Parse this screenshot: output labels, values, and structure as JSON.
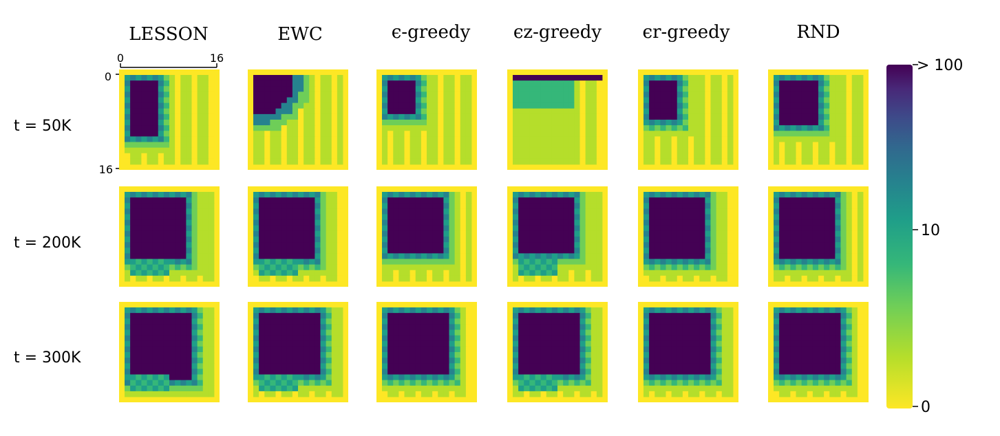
{
  "chart_data": {
    "type": "heatmap",
    "columns": [
      "LESSON",
      "EWC",
      "ϵ-greedy",
      "ϵz-greedy",
      "ϵr-greedy",
      "RND"
    ],
    "rows": [
      "t = 50K",
      "t = 200K",
      "t = 300K"
    ],
    "grid_size": 16,
    "axis_ticks": [
      "0",
      "16"
    ],
    "colorbar": {
      "ticks": [
        "> 100",
        "10",
        "0"
      ],
      "scale": "log",
      "colors": [
        "#fde725",
        "#b5de2b",
        "#6ece58",
        "#35b779",
        "#1f9e89",
        "#26828e",
        "#31688e",
        "#3e4989",
        "#482878",
        "#440154"
      ]
    },
    "grid_on": false,
    "legend": "colorbar-right",
    "panels": [
      [
        {
          "dark_box": [
            1,
            5,
            1,
            10
          ],
          "note": "wall near bottom"
        },
        {
          "dark_quarter_circle": 7
        },
        {
          "dark_box": [
            1,
            5,
            1,
            6
          ]
        },
        {
          "dark_band": [
            1,
            1
          ]
        },
        {
          "dark_box": [
            1,
            5,
            1,
            7
          ]
        },
        {
          "dark_box": [
            1,
            7,
            1,
            8
          ]
        }
      ],
      [
        {
          "dark_box": [
            1,
            10,
            1,
            11
          ]
        },
        {
          "dark_box": [
            1,
            10,
            1,
            11
          ]
        },
        {
          "dark_box": [
            1,
            10,
            1,
            10
          ]
        },
        {
          "dark_box": [
            1,
            10,
            1,
            10
          ]
        },
        {
          "dark_box": [
            1,
            10,
            1,
            11
          ]
        },
        {
          "dark_box": [
            1,
            10,
            1,
            11
          ]
        }
      ],
      [
        {
          "dark_box": [
            1,
            11,
            1,
            12
          ]
        },
        {
          "dark_box": [
            1,
            11,
            1,
            11
          ]
        },
        {
          "dark_box": [
            1,
            11,
            1,
            11
          ]
        },
        {
          "dark_box": [
            1,
            11,
            1,
            11
          ]
        },
        {
          "dark_box": [
            1,
            11,
            1,
            11
          ]
        },
        {
          "dark_box": [
            1,
            11,
            1,
            11
          ]
        }
      ]
    ]
  }
}
